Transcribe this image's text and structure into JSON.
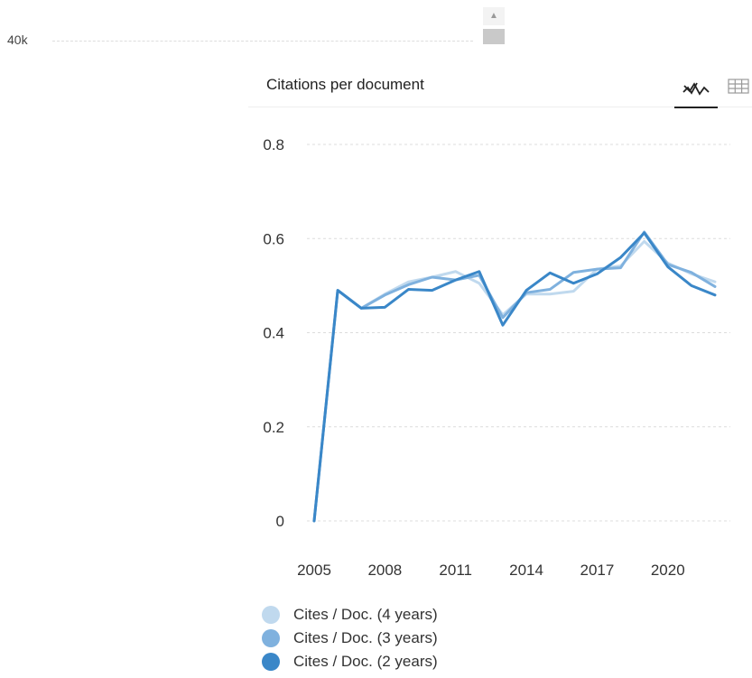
{
  "background_chart": {
    "y_label_partial": "40k"
  },
  "card": {
    "title": "Citations per document",
    "view_line_icon": "line-chart-icon",
    "view_table_icon": "table-grid-icon"
  },
  "chart_data": {
    "type": "line",
    "title": "Citations per document",
    "xlabel": "",
    "ylabel": "",
    "x": [
      2005,
      2006,
      2007,
      2008,
      2009,
      2010,
      2011,
      2012,
      2013,
      2014,
      2015,
      2016,
      2017,
      2018,
      2019,
      2020,
      2021,
      2022
    ],
    "xticks": [
      "2005",
      "2008",
      "2011",
      "2014",
      "2017",
      "2020"
    ],
    "yticks": [
      "0",
      "0.2",
      "0.4",
      "0.6",
      "0.8"
    ],
    "ylim": [
      0,
      0.8
    ],
    "grid": true,
    "legend_position": "bottom",
    "series": [
      {
        "name": "Cites / Doc. (4 years)",
        "color": "#c0d9ee",
        "values": [
          0,
          0.49,
          0.452,
          0.482,
          0.508,
          0.518,
          0.53,
          0.505,
          0.438,
          0.482,
          0.482,
          0.488,
          0.535,
          0.542,
          0.594,
          0.548,
          0.525,
          0.508
        ]
      },
      {
        "name": "Cites / Doc. (3 years)",
        "color": "#7fb1de",
        "values": [
          0,
          0.49,
          0.452,
          0.48,
          0.502,
          0.518,
          0.512,
          0.522,
          0.432,
          0.485,
          0.492,
          0.528,
          0.535,
          0.538,
          0.614,
          0.545,
          0.528,
          0.498
        ]
      },
      {
        "name": "Cites / Doc. (2 years)",
        "color": "#3a87c8",
        "values": [
          0,
          0.49,
          0.452,
          0.454,
          0.492,
          0.49,
          0.512,
          0.53,
          0.416,
          0.49,
          0.527,
          0.505,
          0.525,
          0.56,
          0.612,
          0.54,
          0.5,
          0.48
        ]
      }
    ]
  }
}
